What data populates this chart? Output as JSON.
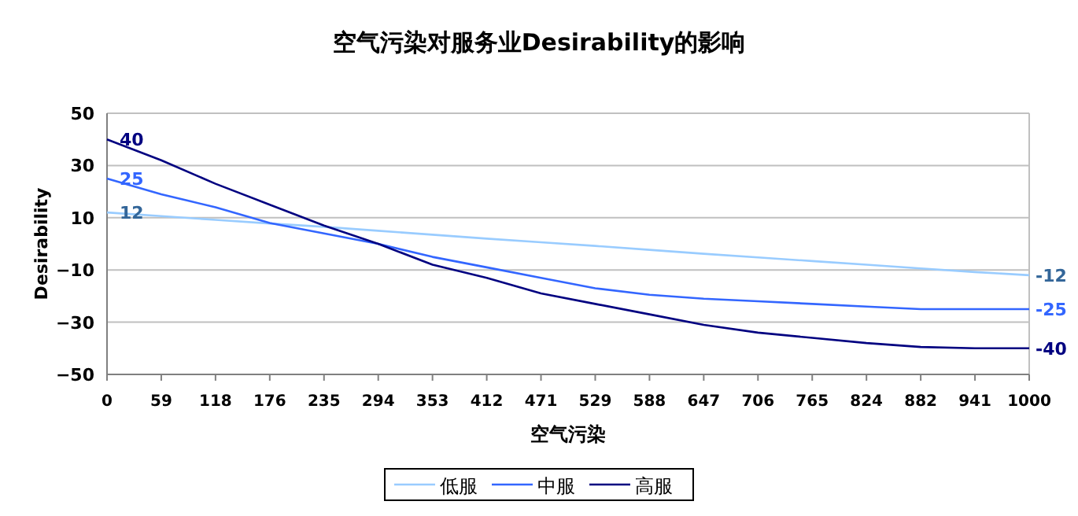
{
  "chart_data": {
    "type": "line",
    "title": "空气污染对服务业Desirability的影响",
    "xlabel": "空气污染",
    "ylabel": "Desirability",
    "categories": [
      "0",
      "59",
      "118",
      "176",
      "235",
      "294",
      "353",
      "412",
      "471",
      "529",
      "588",
      "647",
      "706",
      "765",
      "824",
      "882",
      "941",
      "1000"
    ],
    "ylim": [
      -50,
      50
    ],
    "yticks": [
      -50,
      -30,
      -10,
      10,
      30,
      50
    ],
    "grid": "y",
    "legend": "bottom",
    "series": [
      {
        "name": "低服",
        "color": "#99ccff",
        "values": [
          12,
          10.6,
          9.2,
          7.8,
          6.5,
          5,
          3.5,
          2,
          0.6,
          -0.8,
          -2.3,
          -3.8,
          -5.2,
          -6.6,
          -8,
          -9.4,
          -10.8,
          -12
        ],
        "value_labels": [
          "12",
          null,
          null,
          null,
          null,
          null,
          null,
          null,
          null,
          null,
          null,
          null,
          null,
          null,
          null,
          null,
          null,
          "-12"
        ]
      },
      {
        "name": "中服",
        "color": "#3366ff",
        "values": [
          25,
          19,
          14,
          8,
          4,
          0,
          -5,
          -9,
          -13,
          -17,
          -19.5,
          -21,
          -22,
          -23,
          -24,
          -25,
          -25,
          -25
        ],
        "value_labels": [
          "25",
          null,
          null,
          null,
          null,
          null,
          null,
          null,
          null,
          null,
          null,
          null,
          null,
          null,
          null,
          null,
          null,
          "-25"
        ]
      },
      {
        "name": "高服",
        "color": "#000080",
        "values": [
          40,
          32,
          23,
          15,
          7,
          0,
          -8,
          -13,
          -19,
          -23,
          -27,
          -31,
          -34,
          -36,
          -38,
          -39.5,
          -40,
          -40
        ],
        "value_labels": [
          "40",
          null,
          null,
          null,
          null,
          null,
          null,
          null,
          null,
          null,
          null,
          null,
          null,
          null,
          null,
          null,
          null,
          "-40"
        ]
      }
    ]
  }
}
